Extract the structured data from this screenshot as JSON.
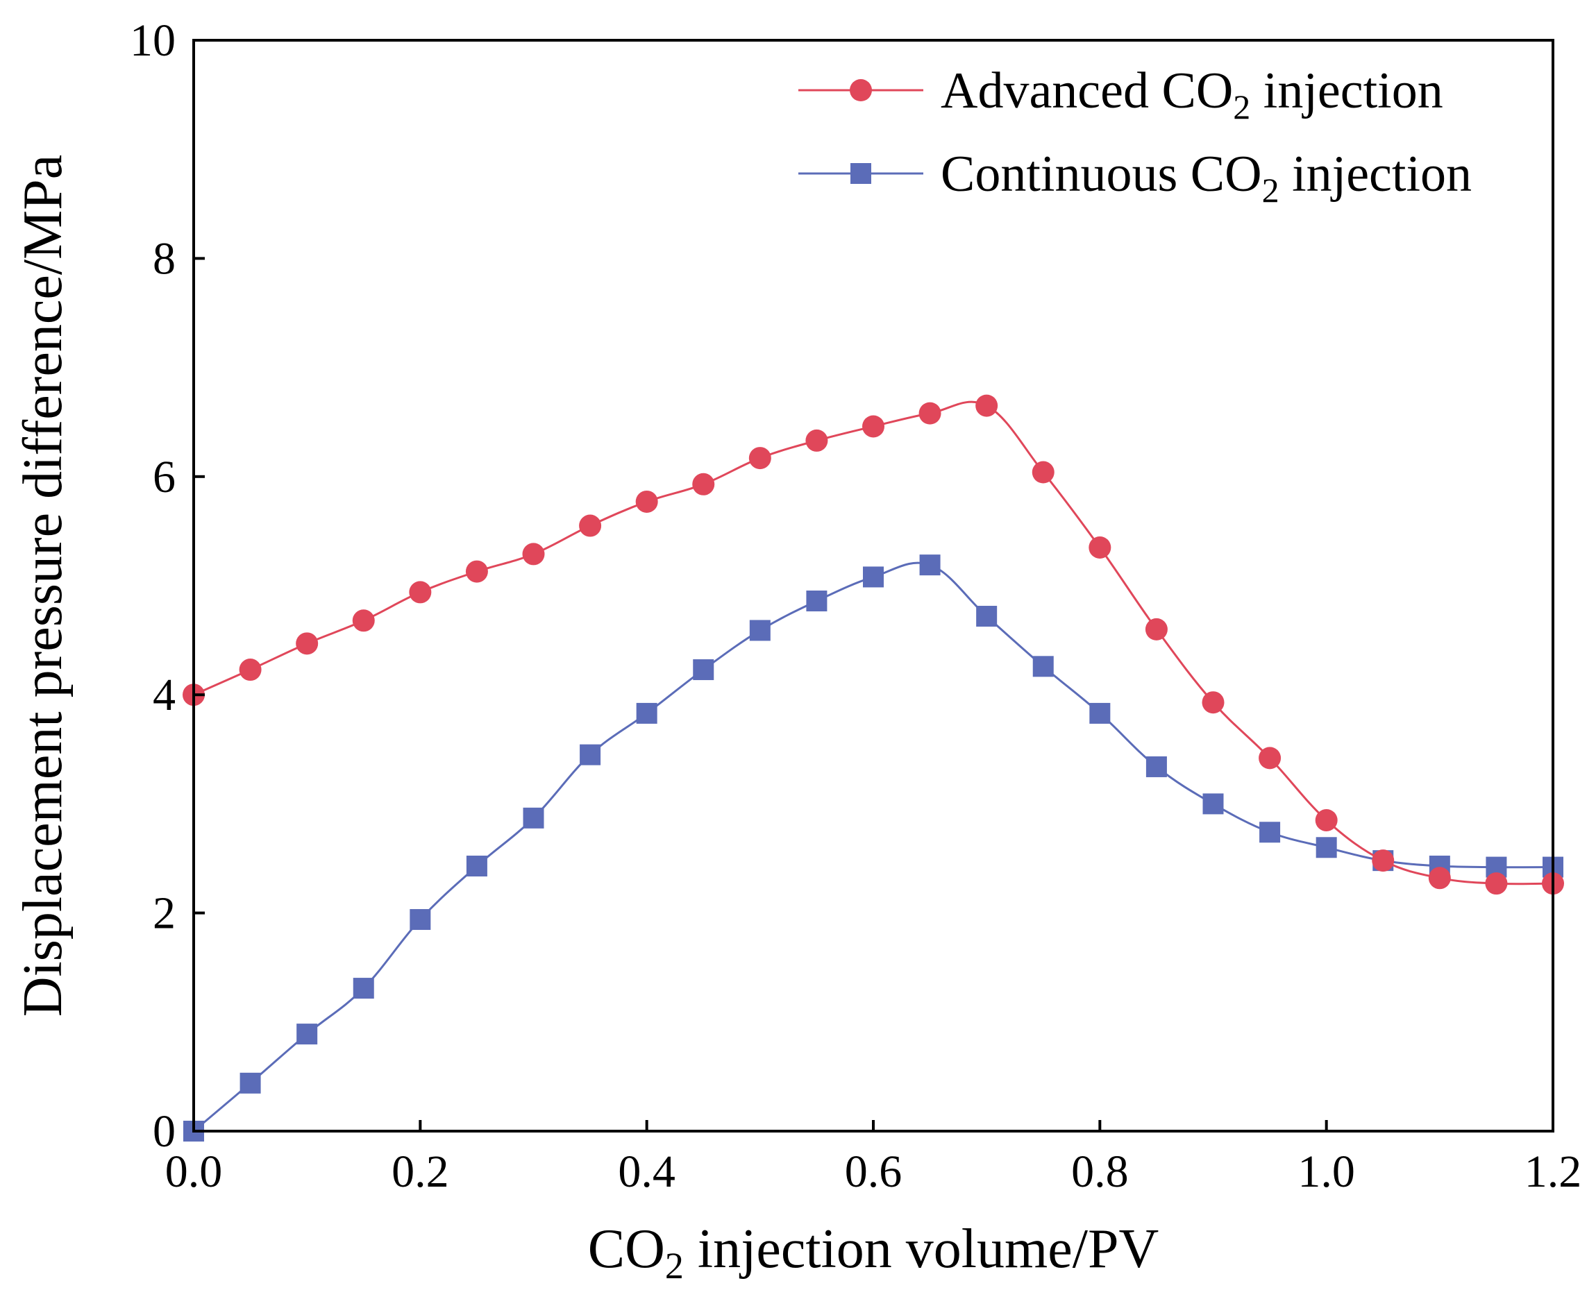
{
  "chart_data": {
    "type": "line",
    "title": "",
    "xlabel": {
      "prefix": "CO",
      "sub": "2",
      "suffix": " injection volume/PV"
    },
    "ylabel": "Displacement pressure difference/MPa",
    "xlim": [
      0,
      1.2
    ],
    "ylim": [
      0,
      10
    ],
    "xticks": [
      "0.0",
      "0.2",
      "0.4",
      "0.6",
      "0.8",
      "1.0",
      "1.2"
    ],
    "yticks": [
      "0",
      "2",
      "4",
      "6",
      "8",
      "10"
    ],
    "grid": false,
    "legend_position": "top-right",
    "series": [
      {
        "name": "Advanced CO2 injection",
        "legend": {
          "prefix": "Advanced CO",
          "sub": "2",
          "suffix": " injection"
        },
        "color": "#e0475a",
        "marker": "circle",
        "x": [
          0,
          0.05,
          0.1,
          0.15,
          0.2,
          0.25,
          0.3,
          0.35,
          0.4,
          0.45,
          0.5,
          0.55,
          0.6,
          0.65,
          0.7,
          0.75,
          0.8,
          0.85,
          0.9,
          0.95,
          1.0,
          1.05,
          1.1,
          1.15,
          1.2
        ],
        "y": [
          4.0,
          4.23,
          4.47,
          4.68,
          4.94,
          5.13,
          5.29,
          5.55,
          5.77,
          5.93,
          6.17,
          6.33,
          6.46,
          6.58,
          6.65,
          6.04,
          5.35,
          4.6,
          3.93,
          3.42,
          2.85,
          2.48,
          2.32,
          2.27,
          2.27
        ]
      },
      {
        "name": "Continuous CO2 injection",
        "legend": {
          "prefix": "Continuous CO",
          "sub": "2",
          "suffix": " injection"
        },
        "color": "#5b6cb8",
        "marker": "square",
        "x": [
          0,
          0.05,
          0.1,
          0.15,
          0.2,
          0.25,
          0.3,
          0.35,
          0.4,
          0.45,
          0.5,
          0.55,
          0.6,
          0.65,
          0.7,
          0.75,
          0.8,
          0.85,
          0.9,
          0.95,
          1.0,
          1.05,
          1.1,
          1.15,
          1.2
        ],
        "y": [
          0.0,
          0.44,
          0.89,
          1.31,
          1.94,
          2.43,
          2.87,
          3.45,
          3.83,
          4.23,
          4.59,
          4.86,
          5.08,
          5.19,
          4.72,
          4.26,
          3.83,
          3.34,
          3.0,
          2.74,
          2.6,
          2.48,
          2.43,
          2.42,
          2.42
        ]
      }
    ]
  }
}
